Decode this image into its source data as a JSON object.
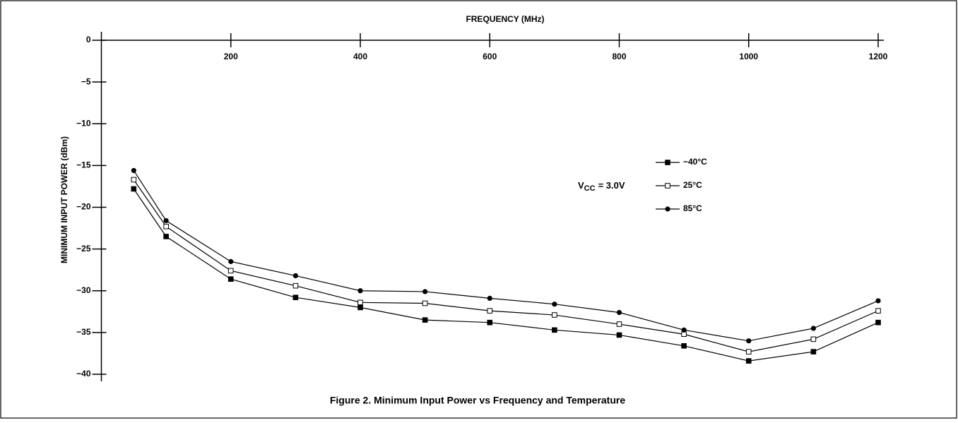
{
  "chart_data": {
    "type": "line",
    "title": "Figure 2.  Minimum Input Power vs Frequency and Temperature",
    "x_label": "FREQUENCY (MHz)",
    "y_label": "MINIMUM INPUT POWER (dBm)",
    "annotation": {
      "base": "V",
      "subscript": "CC",
      "text": "= 3.0V"
    },
    "x": [
      50,
      100,
      200,
      300,
      400,
      500,
      600,
      700,
      800,
      900,
      1000,
      1100,
      1200
    ],
    "xlim": [
      0,
      1200
    ],
    "xticks": [
      200,
      400,
      600,
      800,
      1000,
      1200
    ],
    "ylim": [
      -40,
      0
    ],
    "yticks": [
      {
        "value": 0,
        "label": "0"
      },
      {
        "value": -5,
        "label": "−5"
      },
      {
        "value": -10,
        "label": "−10"
      },
      {
        "value": -15,
        "label": "−15"
      },
      {
        "value": -20,
        "label": "−20"
      },
      {
        "value": -25,
        "label": "−25"
      },
      {
        "value": -30,
        "label": "−30"
      },
      {
        "value": -35,
        "label": "−35"
      },
      {
        "value": -40,
        "label": "−40"
      }
    ],
    "series": [
      {
        "name": "−40°C",
        "color": "#000000",
        "marker": "filled-square",
        "values": [
          -17.8,
          -23.5,
          -28.6,
          -30.8,
          -32.0,
          -33.5,
          -33.8,
          -34.7,
          -35.3,
          -36.6,
          -38.4,
          -37.3,
          -33.8
        ]
      },
      {
        "name": "25°C",
        "color": "#000000",
        "marker": "open-square",
        "values": [
          -16.7,
          -22.3,
          -27.6,
          -29.4,
          -31.4,
          -31.5,
          -32.4,
          -32.9,
          -34.0,
          -35.2,
          -37.3,
          -35.8,
          -32.4
        ]
      },
      {
        "name": "85°C",
        "color": "#000000",
        "marker": "filled-circle",
        "values": [
          -15.6,
          -21.6,
          -26.5,
          -28.2,
          -30.0,
          -30.1,
          -30.9,
          -31.6,
          -32.6,
          -34.7,
          -36.0,
          -34.5,
          -31.2
        ]
      }
    ]
  }
}
